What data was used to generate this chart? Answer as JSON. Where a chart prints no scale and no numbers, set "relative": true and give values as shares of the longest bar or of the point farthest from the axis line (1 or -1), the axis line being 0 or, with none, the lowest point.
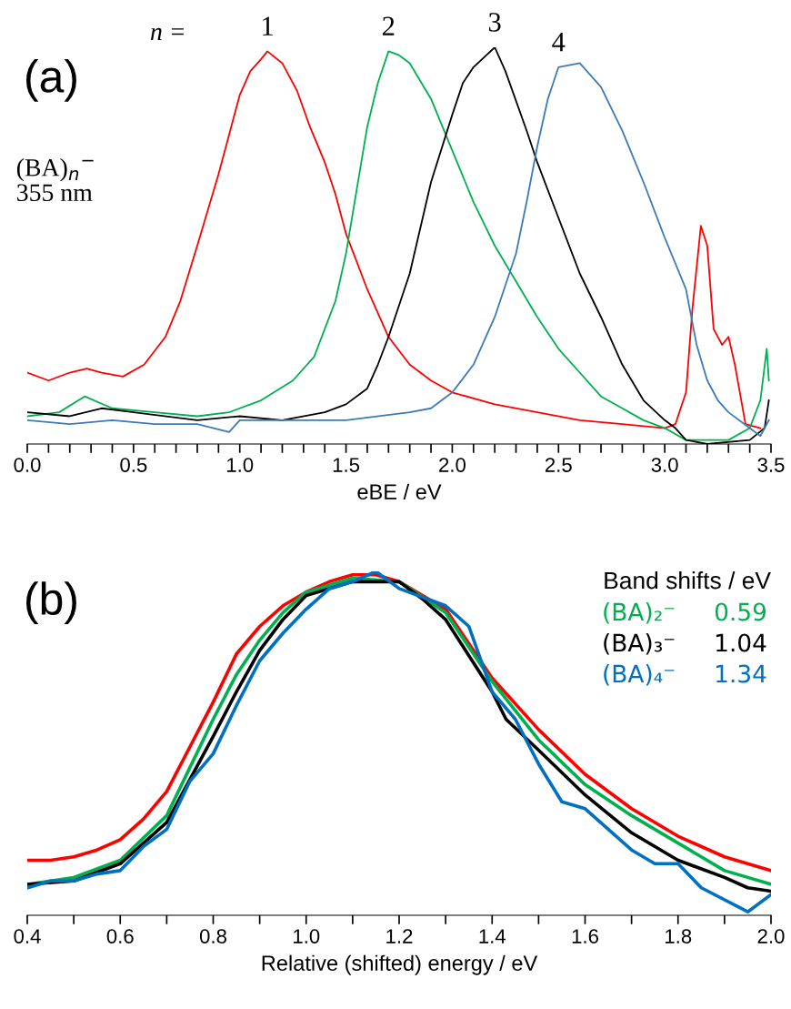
{
  "chart_data": [
    {
      "type": "line",
      "relative": true,
      "xlabel": "eBE / eV",
      "xlim": [
        0.0,
        3.5
      ],
      "xticks": [
        {
          "value": 0.0,
          "label": "0.0"
        },
        {
          "value": 0.1,
          "label": null
        },
        {
          "value": 0.2,
          "label": null
        },
        {
          "value": 0.3,
          "label": null
        },
        {
          "value": 0.4,
          "label": null
        },
        0.5,
        {
          "value": 0.6,
          "label": null
        },
        {
          "value": 0.7,
          "label": null
        },
        {
          "value": 0.8,
          "label": null
        },
        {
          "value": 0.9,
          "label": null
        },
        {
          "value": 1.0,
          "label": "1.0"
        },
        {
          "value": 1.1,
          "label": null
        },
        {
          "value": 1.2,
          "label": null
        },
        {
          "value": 1.3,
          "label": null
        },
        {
          "value": 1.4,
          "label": null
        },
        1.5,
        {
          "value": 1.6,
          "label": null
        },
        {
          "value": 1.7,
          "label": null
        },
        {
          "value": 1.8,
          "label": null
        },
        {
          "value": 1.9,
          "label": null
        },
        {
          "value": 2.0,
          "label": "2.0"
        },
        {
          "value": 2.1,
          "label": null
        },
        {
          "value": 2.2,
          "label": null
        },
        {
          "value": 2.3,
          "label": null
        },
        {
          "value": 2.4,
          "label": null
        },
        2.5,
        {
          "value": 2.6,
          "label": null
        },
        {
          "value": 2.7,
          "label": null
        },
        {
          "value": 2.8,
          "label": null
        },
        {
          "value": 2.9,
          "label": null
        },
        {
          "value": 3.0,
          "label": "3.0"
        },
        {
          "value": 3.1,
          "label": null
        },
        {
          "value": 3.2,
          "label": null
        },
        {
          "value": 3.3,
          "label": null
        },
        {
          "value": 3.4,
          "label": null
        },
        3.5
      ],
      "tick_labels": "x",
      "grid": false,
      "legend": false,
      "annotations": [
        "(a)",
        "n =",
        "(BA)$_{n}$$^{−}$\n355 nm",
        {
          "text": "1",
          "x": 1.13,
          "y": 0.99
        },
        {
          "text": "2",
          "x": 1.7,
          "y": 0.99
        },
        {
          "text": "3",
          "x": 2.2,
          "y": 1.0
        },
        {
          "text": "4",
          "x": 2.5,
          "y": 0.95
        }
      ],
      "series": [
        {
          "color": "#ff0000",
          "x": [
            0.0,
            0.1,
            0.2,
            0.28,
            0.35,
            0.45,
            0.55,
            0.65,
            0.72,
            0.8,
            0.9,
            0.95,
            1.0,
            1.05,
            1.1,
            1.13,
            1.2,
            1.27,
            1.33,
            1.4,
            1.45,
            1.5,
            1.6,
            1.7,
            1.8,
            1.9,
            2.0,
            2.2,
            2.4,
            2.6,
            2.8,
            3.0,
            3.05,
            3.1,
            3.13,
            3.17,
            3.2,
            3.23,
            3.27,
            3.3,
            3.33,
            3.38,
            3.45
          ],
          "values": [
            0.18,
            0.16,
            0.18,
            0.19,
            0.18,
            0.17,
            0.2,
            0.27,
            0.36,
            0.5,
            0.68,
            0.78,
            0.88,
            0.94,
            0.97,
            0.99,
            0.96,
            0.89,
            0.8,
            0.71,
            0.63,
            0.53,
            0.39,
            0.27,
            0.2,
            0.16,
            0.13,
            0.1,
            0.08,
            0.06,
            0.05,
            0.04,
            0.05,
            0.13,
            0.34,
            0.55,
            0.5,
            0.29,
            0.25,
            0.27,
            0.2,
            0.05,
            0.04
          ]
        },
        {
          "color": "#00b050",
          "x": [
            0.0,
            0.15,
            0.27,
            0.4,
            0.6,
            0.8,
            0.95,
            1.1,
            1.25,
            1.35,
            1.45,
            1.5,
            1.55,
            1.6,
            1.65,
            1.7,
            1.75,
            1.8,
            1.9,
            2.0,
            2.1,
            2.2,
            2.3,
            2.4,
            2.5,
            2.6,
            2.7,
            2.8,
            2.9,
            3.0,
            3.1,
            3.3,
            3.4,
            3.45,
            3.48,
            3.49
          ],
          "values": [
            0.07,
            0.08,
            0.12,
            0.09,
            0.08,
            0.07,
            0.08,
            0.11,
            0.16,
            0.22,
            0.36,
            0.48,
            0.64,
            0.8,
            0.91,
            0.99,
            0.98,
            0.96,
            0.87,
            0.74,
            0.61,
            0.5,
            0.41,
            0.32,
            0.24,
            0.18,
            0.12,
            0.09,
            0.06,
            0.04,
            0.01,
            0.01,
            0.04,
            0.11,
            0.24,
            0.16
          ]
        },
        {
          "color": "#000000",
          "x": [
            0.0,
            0.2,
            0.35,
            0.5,
            0.8,
            1.0,
            1.2,
            1.4,
            1.5,
            1.6,
            1.65,
            1.7,
            1.8,
            1.9,
            2.0,
            2.05,
            2.1,
            2.2,
            2.25,
            2.35,
            2.4,
            2.5,
            2.6,
            2.7,
            2.8,
            2.9,
            3.0,
            3.05,
            3.1,
            3.2,
            3.4,
            3.47,
            3.49
          ],
          "values": [
            0.08,
            0.07,
            0.09,
            0.08,
            0.06,
            0.07,
            0.06,
            0.08,
            0.1,
            0.14,
            0.2,
            0.27,
            0.43,
            0.66,
            0.83,
            0.91,
            0.95,
            1.0,
            0.94,
            0.79,
            0.71,
            0.57,
            0.43,
            0.32,
            0.2,
            0.11,
            0.06,
            0.04,
            0.01,
            0.0,
            0.01,
            0.04,
            0.11
          ]
        },
        {
          "color": "#3d7ab8",
          "x": [
            0.0,
            0.2,
            0.4,
            0.6,
            0.8,
            0.95,
            1.0,
            1.2,
            1.5,
            1.8,
            1.9,
            2.0,
            2.1,
            2.2,
            2.3,
            2.35,
            2.4,
            2.45,
            2.5,
            2.6,
            2.7,
            2.8,
            2.9,
            3.0,
            3.1,
            3.15,
            3.2,
            3.25,
            3.3,
            3.4,
            3.45,
            3.49
          ],
          "values": [
            0.06,
            0.05,
            0.06,
            0.05,
            0.05,
            0.03,
            0.06,
            0.06,
            0.06,
            0.08,
            0.09,
            0.13,
            0.2,
            0.32,
            0.48,
            0.61,
            0.75,
            0.87,
            0.95,
            0.96,
            0.9,
            0.79,
            0.66,
            0.52,
            0.39,
            0.25,
            0.16,
            0.11,
            0.08,
            0.04,
            0.02,
            0.06
          ]
        }
      ]
    },
    {
      "type": "line",
      "relative": true,
      "xlabel": "Relative (shifted) energy / eV",
      "xlim": [
        0.4,
        2.0
      ],
      "xticks": [
        0.4,
        {
          "value": 0.5,
          "label": null
        },
        0.6,
        {
          "value": 0.7,
          "label": null
        },
        0.8,
        {
          "value": 0.9,
          "label": null
        },
        {
          "value": 1.0,
          "label": "1.0"
        },
        {
          "value": 1.1,
          "label": null
        },
        1.2,
        {
          "value": 1.3,
          "label": null
        },
        1.4,
        {
          "value": 1.5,
          "label": null
        },
        1.6,
        {
          "value": 1.7,
          "label": null
        },
        1.8,
        {
          "value": 1.9,
          "label": null
        },
        {
          "value": 2.0,
          "label": "2.0"
        }
      ],
      "tick_labels": "x",
      "grid": false,
      "legend": "top right",
      "legend_title": "Band shifts / eV",
      "annotations": [
        "(b)"
      ],
      "series": [
        {
          "color": "#ff0000",
          "x": [
            0.4,
            0.45,
            0.5,
            0.55,
            0.6,
            0.65,
            0.7,
            0.75,
            0.8,
            0.85,
            0.9,
            0.95,
            1.0,
            1.05,
            1.1,
            1.15,
            1.2,
            1.3,
            1.4,
            1.5,
            1.6,
            1.7,
            1.8,
            1.9,
            2.0
          ],
          "values": [
            0.16,
            0.16,
            0.17,
            0.19,
            0.22,
            0.28,
            0.36,
            0.49,
            0.62,
            0.76,
            0.84,
            0.9,
            0.94,
            0.97,
            0.99,
            0.99,
            0.97,
            0.89,
            0.69,
            0.54,
            0.41,
            0.31,
            0.23,
            0.17,
            0.13
          ]
        },
        {
          "name": "(BA)₂⁻     0.59",
          "color": "#00b050",
          "x": [
            0.4,
            0.5,
            0.6,
            0.7,
            0.8,
            0.85,
            0.9,
            0.95,
            1.0,
            1.1,
            1.2,
            1.3,
            1.4,
            1.5,
            1.6,
            1.7,
            1.8,
            1.9,
            2.0
          ],
          "values": [
            0.09,
            0.11,
            0.16,
            0.29,
            0.57,
            0.7,
            0.8,
            0.88,
            0.94,
            0.98,
            0.97,
            0.88,
            0.68,
            0.51,
            0.38,
            0.29,
            0.21,
            0.13,
            0.09
          ]
        },
        {
          "name": "(BA)₃⁻     1.04",
          "color": "#000000",
          "x": [
            0.4,
            0.5,
            0.6,
            0.7,
            0.8,
            0.85,
            0.9,
            0.95,
            1.0,
            1.1,
            1.2,
            1.25,
            1.3,
            1.4,
            1.43,
            1.5,
            1.6,
            1.7,
            1.8,
            1.9,
            1.95,
            2.0
          ],
          "values": [
            0.09,
            0.1,
            0.15,
            0.27,
            0.52,
            0.65,
            0.77,
            0.86,
            0.93,
            0.97,
            0.97,
            0.92,
            0.86,
            0.65,
            0.57,
            0.48,
            0.35,
            0.24,
            0.16,
            0.11,
            0.08,
            0.07
          ]
        },
        {
          "name": "(BA)₄⁻     1.34",
          "color": "#0070c0",
          "x": [
            0.4,
            0.45,
            0.5,
            0.55,
            0.6,
            0.65,
            0.7,
            0.75,
            0.8,
            0.85,
            0.9,
            0.95,
            1.0,
            1.05,
            1.1,
            1.15,
            1.2,
            1.3,
            1.35,
            1.4,
            1.45,
            1.5,
            1.55,
            1.6,
            1.7,
            1.75,
            1.8,
            1.85,
            1.95,
            2.0
          ],
          "values": [
            0.08,
            0.1,
            0.1,
            0.12,
            0.13,
            0.2,
            0.25,
            0.39,
            0.47,
            0.61,
            0.74,
            0.82,
            0.89,
            0.95,
            0.97,
            1.0,
            0.95,
            0.9,
            0.84,
            0.65,
            0.57,
            0.44,
            0.33,
            0.31,
            0.19,
            0.15,
            0.15,
            0.08,
            0.01,
            0.06
          ]
        }
      ]
    }
  ]
}
